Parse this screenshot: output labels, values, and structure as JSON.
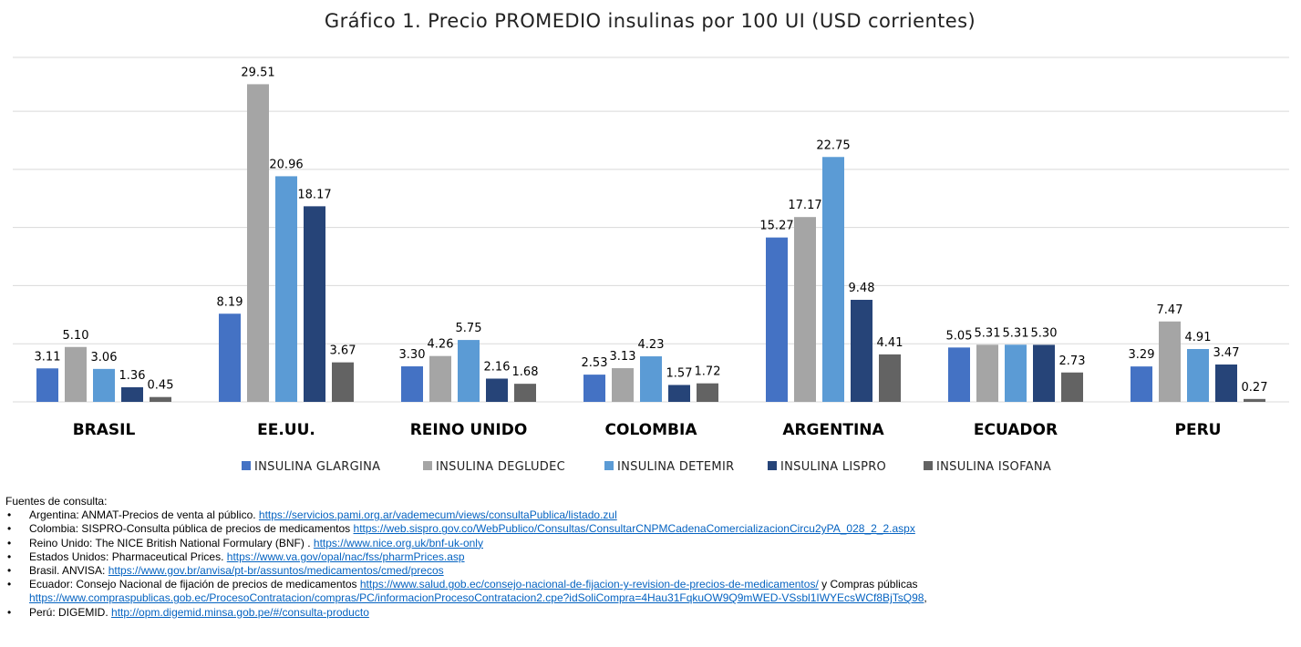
{
  "chart_data": {
    "type": "bar",
    "title": "Gráfico 1. Precio PROMEDIO insulinas por 100 UI (USD corrientes)",
    "xlabel": "",
    "ylabel": "",
    "ylim": [
      0,
      32
    ],
    "grid": true,
    "legend_position": "bottom",
    "categories": [
      "BRASIL",
      "EE.UU.",
      "REINO UNIDO",
      "COLOMBIA",
      "ARGENTINA",
      "ECUADOR",
      "PERU"
    ],
    "series": [
      {
        "name": "INSULINA GLARGINA",
        "color": "#4472c4",
        "values": [
          3.11,
          8.19,
          3.3,
          2.53,
          15.27,
          5.05,
          3.29
        ],
        "labels": [
          "3.11",
          "8.19",
          "3.30",
          "2.53",
          "15.27",
          "5.05",
          "3.29"
        ]
      },
      {
        "name": "INSULINA DEGLUDEC",
        "color": "#a5a5a5",
        "values": [
          5.1,
          29.51,
          4.26,
          3.13,
          17.17,
          5.31,
          7.47
        ],
        "labels": [
          "5.10",
          "29.51",
          "4.26",
          "3.13",
          "17.17",
          "5.31",
          "7.47"
        ]
      },
      {
        "name": "INSULINA DETEMIR",
        "color": "#5b9bd5",
        "values": [
          3.06,
          20.96,
          5.75,
          4.23,
          22.75,
          5.31,
          4.91
        ],
        "labels": [
          "3.06",
          "20.96",
          "5.75",
          "4.23",
          "22.75",
          "5.31",
          "4.91"
        ]
      },
      {
        "name": "INSULINA LISPRO",
        "color": "#264478",
        "values": [
          1.36,
          18.17,
          2.16,
          1.57,
          9.48,
          5.3,
          3.47
        ],
        "labels": [
          "1.36",
          "18.17",
          "2.16",
          "1.57",
          "9.48",
          "5.30",
          "3.47"
        ]
      },
      {
        "name": "INSULINA  ISOFANA",
        "color": "#636363",
        "values": [
          0.45,
          3.67,
          1.68,
          1.72,
          4.41,
          2.73,
          0.27
        ],
        "labels": [
          "0.45",
          "3.67",
          "1.68",
          "1.72",
          "4.41",
          "2.73",
          "0.27"
        ]
      }
    ]
  },
  "sources": {
    "heading": "Fuentes de consulta:",
    "items": [
      {
        "text": "Argentina: ANMAT-Precios de venta al público. ",
        "link": "https://servicios.pami.org.ar/vademecum/views/consultaPublica/listado.zul",
        "after": "",
        "link2": "",
        "after2": ""
      },
      {
        "text": "Colombia: SISPRO-Consulta pública de precios de medicamentos ",
        "link": "https://web.sispro.gov.co/WebPublico/Consultas/ConsultarCNPMCadenaComercializacionCircu2yPA_028_2_2.aspx",
        "after": "",
        "link2": "",
        "after2": ""
      },
      {
        "text": "Reino Unido: The NICE British National Formulary (BNF) . ",
        "link": "https://www.nice.org.uk/bnf-uk-only",
        "after": "",
        "link2": "",
        "after2": ""
      },
      {
        "text": "Estados Unidos:  Pharmaceutical Prices. ",
        "link": "https://www.va.gov/opal/nac/fss/pharmPrices.asp",
        "after": "",
        "link2": "",
        "after2": ""
      },
      {
        "text": "Brasil. ANVISA: ",
        "link": "https://www.gov.br/anvisa/pt-br/assuntos/medicamentos/cmed/precos",
        "after": "",
        "link2": "",
        "after2": ""
      },
      {
        "text": "Ecuador:  Consejo Nacional de fijación de precios de medicamentos ",
        "link": "https://www.salud.gob.ec/consejo-nacional-de-fijacion-y-revision-de-precios-de-medicamentos/",
        "after": " y Compras públicas",
        "link2": "https://www.compraspublicas.gob.ec/ProcesoContratacion/compras/PC/informacionProcesoContratacion2.cpe?idSoliCompra=4Hau31FqkuOW9Q9mWED-VSsbl1IWYEcsWCf8BjTsQ98",
        "after2": ","
      },
      {
        "text": "Perú: DIGEMID. ",
        "link": "http://opm.digemid.minsa.gob.pe/#/consulta-producto",
        "after": "",
        "link2": "",
        "after2": ""
      }
    ]
  }
}
